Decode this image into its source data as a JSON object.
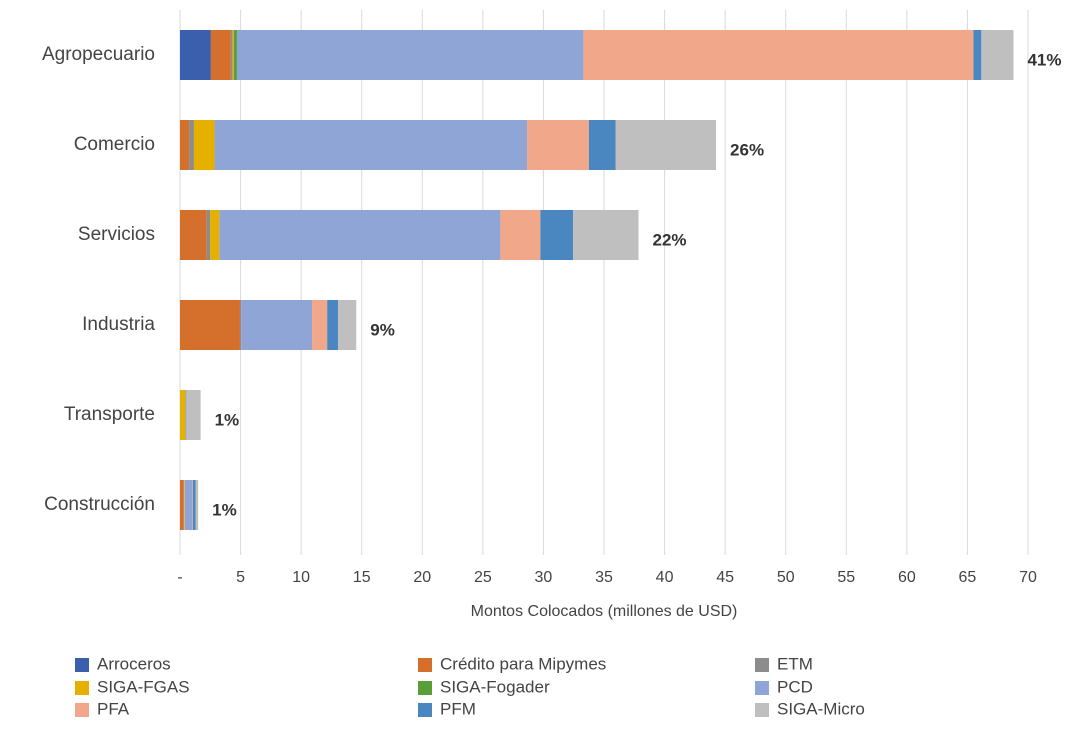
{
  "chart_data": {
    "type": "stacked_barh",
    "xlabel": "Montos Colocados (millones de USD)",
    "categories": [
      "Agropecuario",
      "Comercio",
      "Servicios",
      "Industria",
      "Transporte",
      "Construcción"
    ],
    "series": [
      {
        "name": "Arroceros",
        "color": "#3a5fad",
        "values": [
          2.55,
          0,
          0,
          0,
          0,
          0
        ]
      },
      {
        "name": "Crédito para Mipymes",
        "color": "#d4702c",
        "values": [
          1.65,
          0.75,
          2.2,
          4.95,
          0,
          0.3
        ]
      },
      {
        "name": "ETM",
        "color": "#8c8c8c",
        "values": [
          0.15,
          0.4,
          0.3,
          0.1,
          0,
          0.05
        ]
      },
      {
        "name": "SIGA-FGAS",
        "color": "#e6b000",
        "values": [
          0.1,
          1.7,
          0.75,
          0,
          0.45,
          0.05
        ]
      },
      {
        "name": "SIGA-Fogader",
        "color": "#5a9e3a",
        "values": [
          0.25,
          0,
          0,
          0,
          0,
          0
        ]
      },
      {
        "name": "PCD",
        "color": "#8fa5d6",
        "values": [
          28.6,
          25.8,
          23.2,
          5.85,
          0.1,
          0.6
        ]
      },
      {
        "name": "PFA",
        "color": "#f0a78a",
        "values": [
          32.2,
          5.1,
          3.3,
          1.25,
          0,
          0.05
        ]
      },
      {
        "name": "PFM",
        "color": "#4a86c0",
        "values": [
          0.65,
          2.2,
          2.7,
          0.9,
          0,
          0.25
        ]
      },
      {
        "name": "SIGA-Micro",
        "color": "#bfbfbf",
        "values": [
          2.65,
          8.3,
          5.4,
          1.5,
          1.15,
          0.2
        ]
      }
    ],
    "share_labels": [
      "41%",
      "26%",
      "22%",
      "9%",
      "1%",
      "1%"
    ],
    "xlim": [
      0,
      70
    ],
    "xticks": [
      {
        "value": 0,
        "label": "-"
      },
      5,
      10,
      15,
      20,
      25,
      30,
      35,
      40,
      45,
      50,
      55,
      60,
      65,
      70
    ],
    "grid": true
  }
}
